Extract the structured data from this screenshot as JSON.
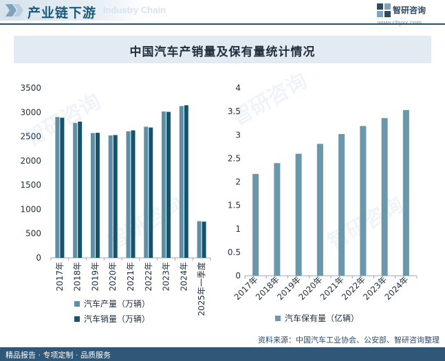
{
  "header": {
    "title": "产业链下游",
    "watermark_text": "Industry Chain",
    "brand_name": "智研咨询",
    "brand_url": "www.chyxx.com"
  },
  "chart_title": "中国汽车产销量及保有量统计情况",
  "source": "资料来源：中国汽车工业协会、公安部、智研咨询整理",
  "footer": "精品报告 · 专项定制 · 品质服务",
  "colors": {
    "production": "#5f8fa6",
    "sales": "#14546e",
    "ownership": "#6b97ab",
    "axis": "#9aa7b2",
    "text": "#1f2d3d",
    "header": "#1d5a78"
  },
  "chart_data": [
    {
      "type": "bar",
      "categories": [
        "2017年",
        "2018年",
        "2019年",
        "2020年",
        "2021年",
        "2022年",
        "2023年",
        "2024年",
        "2025年一季度"
      ],
      "series": [
        {
          "name": "汽车产量（万辆）",
          "values": [
            2902,
            2781,
            2572,
            2523,
            2608,
            2702,
            3016,
            3128,
            756
          ]
        },
        {
          "name": "汽车销量（万辆）",
          "values": [
            2888,
            2808,
            2577,
            2531,
            2627,
            2686,
            3009,
            3144,
            747
          ]
        }
      ],
      "yticks": [
        "0",
        "500",
        "1000",
        "1500",
        "2000",
        "2500",
        "3000",
        "3500"
      ],
      "ylim": [
        0,
        3500
      ],
      "legend_position": "bottom"
    },
    {
      "type": "bar",
      "categories": [
        "2017年",
        "2018年",
        "2019年",
        "2020年",
        "2021年",
        "2022年",
        "2023年",
        "2024年"
      ],
      "series": [
        {
          "name": "汽车保有量（亿辆）",
          "values": [
            2.17,
            2.4,
            2.6,
            2.81,
            3.02,
            3.19,
            3.36,
            3.53
          ]
        }
      ],
      "yticks": [
        "0",
        "0.5",
        "1",
        "1.5",
        "2",
        "2.5",
        "3",
        "3.5",
        "4"
      ],
      "ylim": [
        0,
        4
      ],
      "legend_position": "bottom"
    }
  ]
}
